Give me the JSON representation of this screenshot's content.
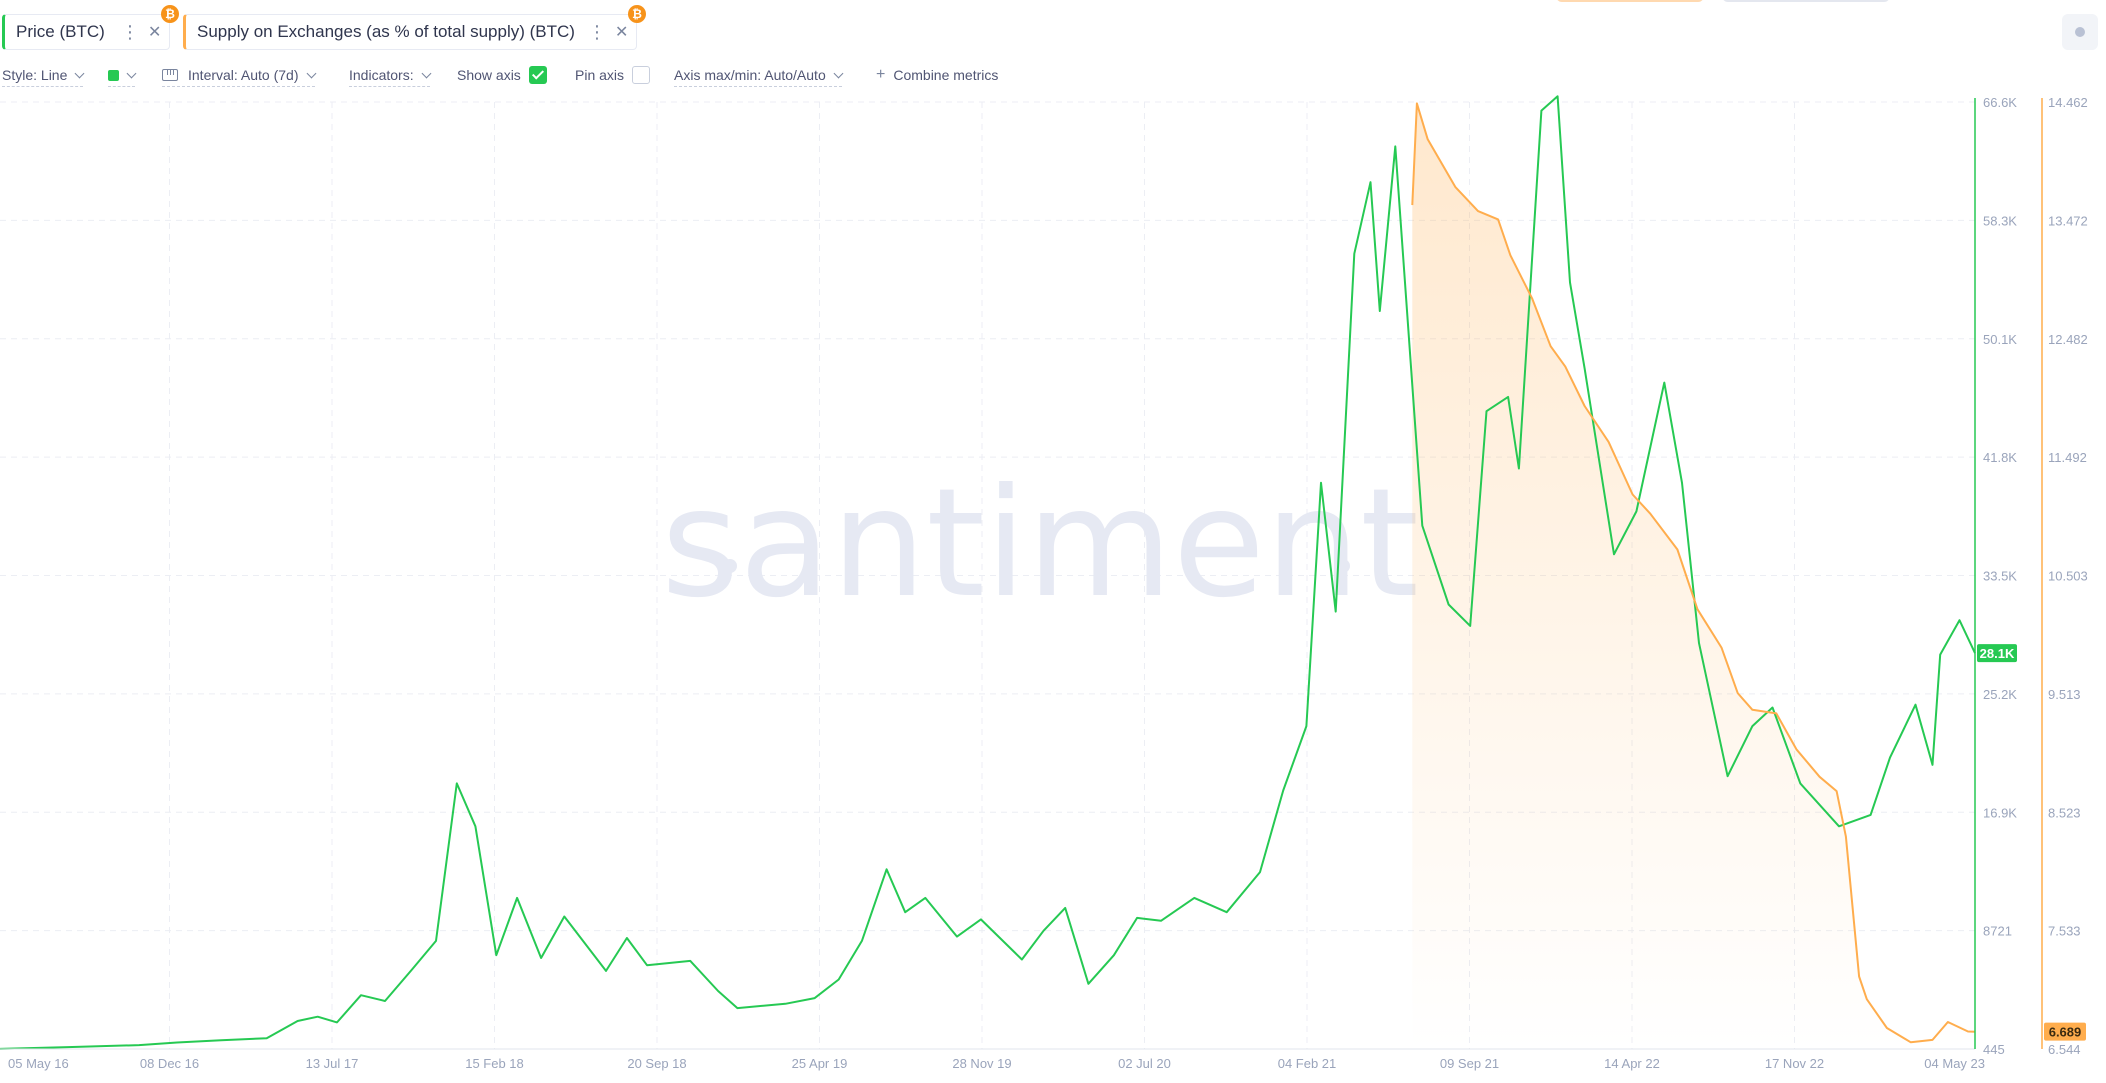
{
  "metrics": [
    {
      "label": "Price (BTC)",
      "color": "#26c953",
      "asset_badge": "₿"
    },
    {
      "label": "Supply on Exchanges (as % of total supply) (BTC)",
      "color": "#ffad4d",
      "asset_badge": "₿"
    }
  ],
  "settings": {
    "style": "Style: Line",
    "interval": "Interval: Auto (7d)",
    "indicators": "Indicators:",
    "show_axis": "Show axis",
    "show_axis_checked": true,
    "pin_axis": "Pin axis",
    "pin_axis_checked": false,
    "axis_max_min": "Axis max/min: Auto/Auto",
    "combine": "Combine metrics"
  },
  "watermark": "santiment",
  "chart_data": {
    "type": "line",
    "x_ticks": [
      "05 May 16",
      "08 Dec 16",
      "13 Jul 17",
      "15 Feb 18",
      "20 Sep 18",
      "25 Apr 19",
      "28 Nov 19",
      "02 Jul 20",
      "04 Feb 21",
      "09 Sep 21",
      "14 Apr 22",
      "17 Nov 22",
      "04 May 23"
    ],
    "x_range": [
      "2016-05-05",
      "2023-05-04"
    ],
    "y_axes": [
      {
        "series": "Price (BTC)",
        "color": "#26c953",
        "ticks": [
          "66.6K",
          "58.3K",
          "50.1K",
          "41.8K",
          "33.5K",
          "25.2K",
          "16.9K",
          "8721",
          "445"
        ],
        "range": [
          445,
          66600
        ],
        "current_label": "28.1K",
        "current_value": 28100
      },
      {
        "series": "Supply on Exchanges (as % of total supply) (BTC)",
        "color": "#ffad4d",
        "ticks": [
          "14.462",
          "13.472",
          "12.482",
          "11.492",
          "10.503",
          "9.513",
          "8.523",
          "7.533",
          "6.544"
        ],
        "range": [
          6.544,
          14.462
        ],
        "current_label": "6.689",
        "current_value": 6.689
      }
    ],
    "series": [
      {
        "name": "Price (BTC)",
        "color": "#26c953",
        "axis": 0,
        "points": [
          [
            "2016-05-05",
            450
          ],
          [
            "2016-08-01",
            580
          ],
          [
            "2016-11-01",
            720
          ],
          [
            "2016-12-20",
            900
          ],
          [
            "2017-02-15",
            1050
          ],
          [
            "2017-04-15",
            1200
          ],
          [
            "2017-05-25",
            2400
          ],
          [
            "2017-06-20",
            2700
          ],
          [
            "2017-07-15",
            2300
          ],
          [
            "2017-08-15",
            4200
          ],
          [
            "2017-09-15",
            3800
          ],
          [
            "2017-10-20",
            6000
          ],
          [
            "2017-11-20",
            8000
          ],
          [
            "2017-12-17",
            19000
          ],
          [
            "2018-01-10",
            16000
          ],
          [
            "2018-02-06",
            7000
          ],
          [
            "2018-03-05",
            11000
          ],
          [
            "2018-04-05",
            6800
          ],
          [
            "2018-05-05",
            9700
          ],
          [
            "2018-06-28",
            5900
          ],
          [
            "2018-07-25",
            8200
          ],
          [
            "2018-08-20",
            6300
          ],
          [
            "2018-10-15",
            6600
          ],
          [
            "2018-11-20",
            4500
          ],
          [
            "2018-12-15",
            3300
          ],
          [
            "2019-02-15",
            3600
          ],
          [
            "2019-03-25",
            4000
          ],
          [
            "2019-04-25",
            5300
          ],
          [
            "2019-05-25",
            8000
          ],
          [
            "2019-06-26",
            13000
          ],
          [
            "2019-07-20",
            10000
          ],
          [
            "2019-08-15",
            11000
          ],
          [
            "2019-09-25",
            8300
          ],
          [
            "2019-10-26",
            9500
          ],
          [
            "2019-12-18",
            6700
          ],
          [
            "2020-01-15",
            8700
          ],
          [
            "2020-02-12",
            10300
          ],
          [
            "2020-03-13",
            5000
          ],
          [
            "2020-04-15",
            7000
          ],
          [
            "2020-05-15",
            9600
          ],
          [
            "2020-06-15",
            9400
          ],
          [
            "2020-07-28",
            11000
          ],
          [
            "2020-09-08",
            10000
          ],
          [
            "2020-10-21",
            12800
          ],
          [
            "2020-11-20",
            18500
          ],
          [
            "2020-12-20",
            23000
          ],
          [
            "2021-01-08",
            40000
          ],
          [
            "2021-01-27",
            31000
          ],
          [
            "2021-02-20",
            56000
          ],
          [
            "2021-03-13",
            61000
          ],
          [
            "2021-03-25",
            52000
          ],
          [
            "2021-04-14",
            63500
          ],
          [
            "2021-05-19",
            37000
          ],
          [
            "2021-06-22",
            31500
          ],
          [
            "2021-07-20",
            30000
          ],
          [
            "2021-08-10",
            45000
          ],
          [
            "2021-09-07",
            46000
          ],
          [
            "2021-09-21",
            41000
          ],
          [
            "2021-10-20",
            66000
          ],
          [
            "2021-11-10",
            67000
          ],
          [
            "2021-11-26",
            54000
          ],
          [
            "2021-12-15",
            48000
          ],
          [
            "2022-01-22",
            35000
          ],
          [
            "2022-02-20",
            38000
          ],
          [
            "2022-03-28",
            47000
          ],
          [
            "2022-04-20",
            40000
          ],
          [
            "2022-05-12",
            28800
          ],
          [
            "2022-06-18",
            19500
          ],
          [
            "2022-07-20",
            23000
          ],
          [
            "2022-08-15",
            24300
          ],
          [
            "2022-09-20",
            19000
          ],
          [
            "2022-11-09",
            16000
          ],
          [
            "2022-12-20",
            16800
          ],
          [
            "2023-01-14",
            20800
          ],
          [
            "2023-02-16",
            24500
          ],
          [
            "2023-03-10",
            20300
          ],
          [
            "2023-03-20",
            28000
          ],
          [
            "2023-04-14",
            30400
          ],
          [
            "2023-05-04",
            28100
          ]
        ]
      },
      {
        "name": "Supply on Exchanges (as % of total supply) (BTC)",
        "color": "#ffad4d",
        "axis": 1,
        "points": [
          [
            "2021-05-06",
            13.6
          ],
          [
            "2021-05-12",
            14.45
          ],
          [
            "2021-05-26",
            14.15
          ],
          [
            "2021-07-01",
            13.75
          ],
          [
            "2021-07-30",
            13.55
          ],
          [
            "2021-08-25",
            13.48
          ],
          [
            "2021-09-10",
            13.18
          ],
          [
            "2021-10-08",
            12.82
          ],
          [
            "2021-11-01",
            12.42
          ],
          [
            "2021-11-20",
            12.25
          ],
          [
            "2021-12-15",
            11.92
          ],
          [
            "2022-01-15",
            11.62
          ],
          [
            "2022-02-15",
            11.18
          ],
          [
            "2022-03-10",
            11.02
          ],
          [
            "2022-04-14",
            10.72
          ],
          [
            "2022-05-10",
            10.22
          ],
          [
            "2022-06-10",
            9.9
          ],
          [
            "2022-07-01",
            9.52
          ],
          [
            "2022-07-20",
            9.38
          ],
          [
            "2022-08-20",
            9.35
          ],
          [
            "2022-09-15",
            9.05
          ],
          [
            "2022-10-15",
            8.82
          ],
          [
            "2022-11-06",
            8.7
          ],
          [
            "2022-11-18",
            8.32
          ],
          [
            "2022-12-05",
            7.15
          ],
          [
            "2022-12-15",
            6.96
          ],
          [
            "2023-01-10",
            6.72
          ],
          [
            "2023-02-10",
            6.6
          ],
          [
            "2023-03-10",
            6.62
          ],
          [
            "2023-03-30",
            6.77
          ],
          [
            "2023-04-25",
            6.69
          ],
          [
            "2023-05-04",
            6.689
          ]
        ]
      }
    ],
    "grid": true,
    "legend": "top-left"
  }
}
